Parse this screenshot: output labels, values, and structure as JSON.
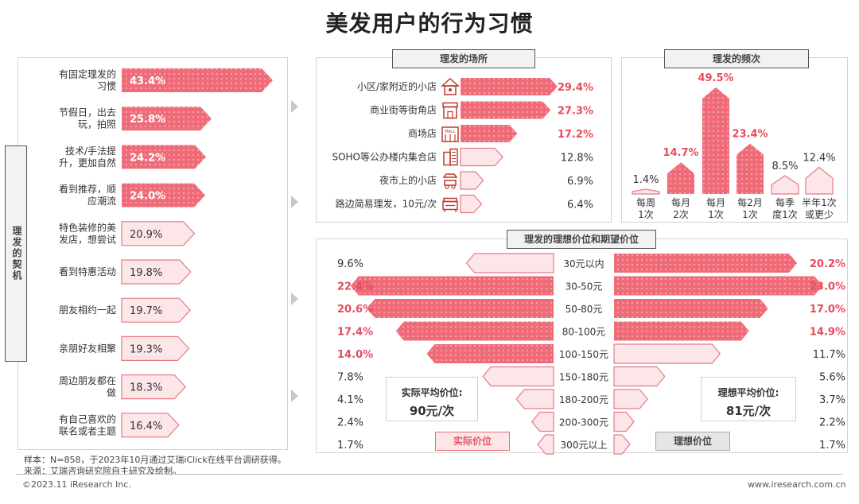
{
  "title": "美发用户的行为习惯",
  "sections": {
    "motive": "理发的契机",
    "place": "理发的场所",
    "freq": "理发的频次",
    "price": "理发的理想价位和期望价位"
  },
  "legend": {
    "actual": "实际价位",
    "ideal": "理想价位"
  },
  "averages": {
    "actual_label": "实际平均价位:",
    "actual_value": "90元/次",
    "ideal_label": "理想平均价位:",
    "ideal_value": "81元/次"
  },
  "footer": {
    "sample": "样本：N=858，于2023年10月通过艾瑞iClick在线平台调研获得。",
    "source": "来源：艾瑞咨询研究院自主研究及绘制。",
    "copyright": "©2023.11 iResearch Inc.",
    "website": "www.iresearch.com.cn"
  },
  "colors": {
    "highlight": "#ef6b78",
    "light_fill": "#fde6e8",
    "light_stroke": "#e67a86",
    "gray_tag": "#e5e5e5"
  },
  "chart_data": [
    {
      "type": "bar",
      "title": "理发的契机",
      "categories": [
        "有固定理发的\n习惯",
        "节假日，出去\n玩，拍照",
        "技术/手法提\n升，更加自然",
        "看到推荐，顺\n应潮流",
        "特色装修的美\n发店，想尝试",
        "看到特惠活动",
        "朋友相约一起",
        "亲朋好友相聚",
        "周边朋友都在\n做",
        "有自己喜欢的\n联名或者主题"
      ],
      "values": [
        43.4,
        25.8,
        24.2,
        24.0,
        20.9,
        19.8,
        19.7,
        19.3,
        18.3,
        16.4
      ],
      "labels": [
        "43.4%",
        "25.8%",
        "24.2%",
        "24.0%",
        "20.9%",
        "19.8%",
        "19.7%",
        "19.3%",
        "18.3%",
        "16.4%"
      ],
      "highlighted": 4
    },
    {
      "type": "bar",
      "title": "理发的场所",
      "categories": [
        "小区/家附近的小店",
        "商业街等街角店",
        "商场店",
        "SOHO等公办楼内集合店",
        "夜市上的小店",
        "路边简易理发，10元/次"
      ],
      "values": [
        29.4,
        27.3,
        17.2,
        12.8,
        6.9,
        6.4
      ],
      "labels": [
        "29.4%",
        "27.3%",
        "17.2%",
        "12.8%",
        "6.9%",
        "6.4%"
      ],
      "icons": [
        "house-icon",
        "shop-icon",
        "mall-icon",
        "office-building-icon",
        "street-stall-icon",
        "barber-cart-icon"
      ],
      "highlighted": 3
    },
    {
      "type": "bar",
      "title": "理发的频次",
      "categories": [
        "每周\n1次",
        "每月\n2次",
        "每月\n1次",
        "每2月\n1次",
        "每季\n度1次",
        "半年1次\n或更少"
      ],
      "values": [
        1.4,
        14.7,
        49.5,
        23.4,
        8.5,
        12.4
      ],
      "labels": [
        "1.4%",
        "14.7%",
        "49.5%",
        "23.4%",
        "8.5%",
        "12.4%"
      ],
      "highlighted": [
        1,
        2,
        3
      ]
    },
    {
      "type": "bar",
      "title": "理发的理想价位和期望价位",
      "categories": [
        "30元以内",
        "30-50元",
        "50-80元",
        "80-100元",
        "100-150元",
        "150-180元",
        "180-200元",
        "200-300元",
        "300元以上"
      ],
      "series": [
        {
          "name": "实际价位",
          "values": [
            9.6,
            22.4,
            20.6,
            17.4,
            14.0,
            7.8,
            4.1,
            2.4,
            1.7
          ],
          "labels": [
            "9.6%",
            "22.4%",
            "20.6%",
            "17.4%",
            "14.0%",
            "7.8%",
            "4.1%",
            "2.4%",
            "1.7%"
          ]
        },
        {
          "name": "理想价位",
          "values": [
            20.2,
            23.0,
            17.0,
            14.9,
            11.7,
            5.6,
            3.7,
            2.2,
            1.7
          ],
          "labels": [
            "20.2%",
            "23.0%",
            "17.0%",
            "14.9%",
            "11.7%",
            "5.6%",
            "3.7%",
            "2.2%",
            "1.7%"
          ]
        }
      ],
      "highlighted_actual": [
        1,
        2,
        3,
        4
      ],
      "highlighted_ideal": [
        0,
        1,
        2,
        3
      ]
    }
  ]
}
